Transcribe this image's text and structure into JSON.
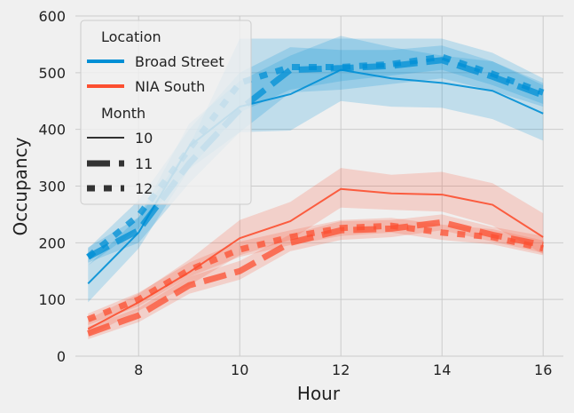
{
  "chart_data": {
    "type": "line",
    "xlabel": "Hour",
    "ylabel": "Occupancy",
    "xlim": [
      6.75,
      16.4
    ],
    "ylim": [
      0,
      600
    ],
    "x_ticks": [
      8,
      10,
      12,
      14,
      16
    ],
    "y_ticks": [
      0,
      100,
      200,
      300,
      400,
      500,
      600
    ],
    "grid": true,
    "legend_position": "top-left",
    "x": [
      7,
      8,
      9,
      10,
      11,
      12,
      13,
      14,
      15,
      16
    ],
    "hue_title": "Location",
    "style_title": "Month",
    "locations": [
      {
        "name": "Broad Street",
        "color": "#008fd5"
      },
      {
        "name": "NIA South",
        "color": "#fc4f30"
      }
    ],
    "months": [
      {
        "name": "10",
        "dash": "solid"
      },
      {
        "name": "11",
        "dash": "dashed"
      },
      {
        "name": "12",
        "dash": "dotted"
      }
    ],
    "series": [
      {
        "location": "Broad Street",
        "month": "10",
        "values": [
          128,
          218,
          370,
          440,
          462,
          505,
          490,
          482,
          468,
          428
        ],
        "lower": [
          95,
          190,
          330,
          395,
          398,
          450,
          440,
          438,
          418,
          380
        ],
        "upper": [
          160,
          245,
          410,
          485,
          530,
          565,
          545,
          530,
          520,
          478
        ]
      },
      {
        "location": "Broad Street",
        "month": "11",
        "values": [
          175,
          222,
          340,
          435,
          505,
          508,
          512,
          522,
          493,
          460
        ],
        "lower": [
          165,
          200,
          305,
          395,
          465,
          470,
          480,
          490,
          468,
          440
        ],
        "upper": [
          192,
          245,
          370,
          560,
          560,
          560,
          560,
          560,
          535,
          490
        ]
      },
      {
        "location": "Broad Street",
        "month": "12",
        "values": [
          175,
          248,
          365,
          482,
          510,
          510,
          515,
          528,
          498,
          465
        ],
        "lower": [
          160,
          225,
          330,
          430,
          470,
          485,
          495,
          505,
          478,
          445
        ],
        "upper": [
          190,
          275,
          400,
          500,
          545,
          540,
          540,
          548,
          520,
          482
        ]
      },
      {
        "location": "NIA South",
        "month": "10",
        "values": [
          48,
          95,
          148,
          208,
          238,
          295,
          287,
          285,
          267,
          210
        ],
        "lower": [
          35,
          80,
          125,
          178,
          205,
          262,
          258,
          255,
          230,
          180
        ],
        "upper": [
          65,
          110,
          170,
          240,
          272,
          332,
          320,
          325,
          305,
          252
        ]
      },
      {
        "location": "NIA South",
        "month": "11",
        "values": [
          40,
          72,
          125,
          150,
          200,
          222,
          225,
          236,
          214,
          196
        ],
        "lower": [
          30,
          60,
          110,
          135,
          185,
          205,
          210,
          222,
          202,
          182
        ],
        "upper": [
          52,
          85,
          140,
          168,
          215,
          238,
          240,
          250,
          228,
          212
        ]
      },
      {
        "location": "NIA South",
        "month": "12",
        "values": [
          65,
          100,
          152,
          188,
          210,
          226,
          230,
          218,
          210,
          190
        ],
        "lower": [
          55,
          88,
          140,
          175,
          196,
          212,
          218,
          205,
          197,
          178
        ],
        "upper": [
          75,
          112,
          165,
          202,
          222,
          240,
          244,
          232,
          224,
          204
        ]
      }
    ]
  }
}
